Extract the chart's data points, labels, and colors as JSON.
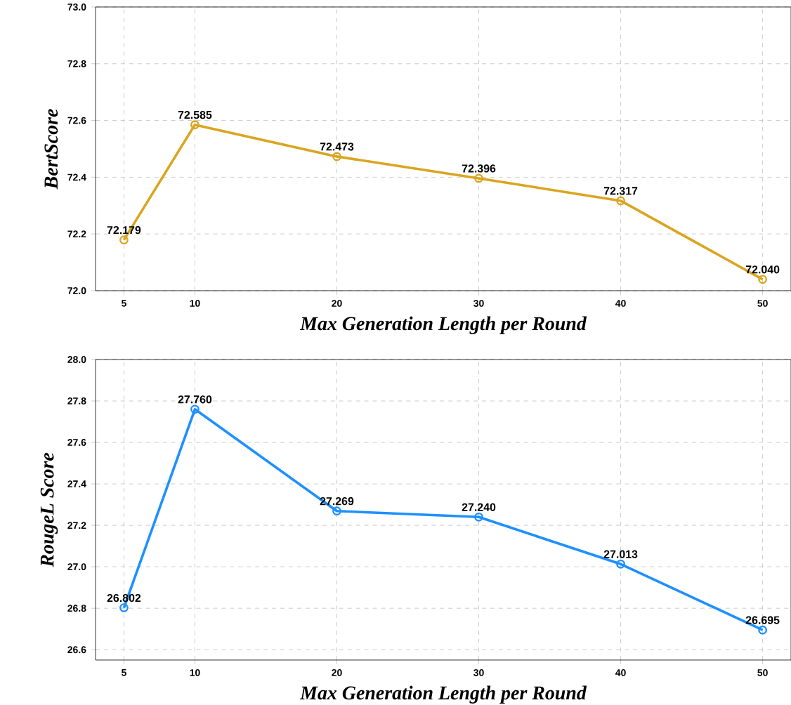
{
  "chart_data": [
    {
      "type": "line",
      "ylabel": "BertScore",
      "xlabel": "Max Generation Length per Round",
      "x": [
        5,
        10,
        20,
        30,
        40,
        50
      ],
      "xlim": [
        3,
        52
      ],
      "xticks": [
        5,
        10,
        20,
        30,
        40,
        50
      ],
      "ylim": [
        72.0,
        73.0
      ],
      "yticks": [
        {
          "value": 72.0,
          "label": "72.0"
        },
        72.2,
        72.4,
        72.6,
        72.8,
        {
          "value": 73.0,
          "label": "73.0"
        }
      ],
      "grid": true,
      "marker": "circle",
      "line_style": "solid",
      "series": [
        {
          "color": "#daa520",
          "values": [
            72.179,
            72.585,
            72.473,
            72.396,
            72.317,
            72.04
          ],
          "value_labels": [
            "72.179",
            "72.585",
            "72.473",
            "72.396",
            "72.317",
            "72.040"
          ]
        }
      ]
    },
    {
      "type": "line",
      "ylabel": "RougeL Score",
      "xlabel": "Max Generation Length per Round",
      "x": [
        5,
        10,
        20,
        30,
        40,
        50
      ],
      "xlim": [
        3,
        52
      ],
      "xticks": [
        5,
        10,
        20,
        30,
        40,
        50
      ],
      "ylim": [
        26.55,
        28.0
      ],
      "yticks": [
        26.6,
        26.8,
        {
          "value": 27.0,
          "label": "27.0"
        },
        27.2,
        27.4,
        27.6,
        27.8,
        {
          "value": 28.0,
          "label": "28.0"
        }
      ],
      "grid": true,
      "marker": "circle",
      "line_style": "solid",
      "series": [
        {
          "color": "#1e90ff",
          "values": [
            26.802,
            27.76,
            27.269,
            27.24,
            27.013,
            26.695
          ],
          "value_labels": [
            "26.802",
            "27.760",
            "27.269",
            "27.240",
            "27.013",
            "26.695"
          ]
        }
      ]
    }
  ]
}
